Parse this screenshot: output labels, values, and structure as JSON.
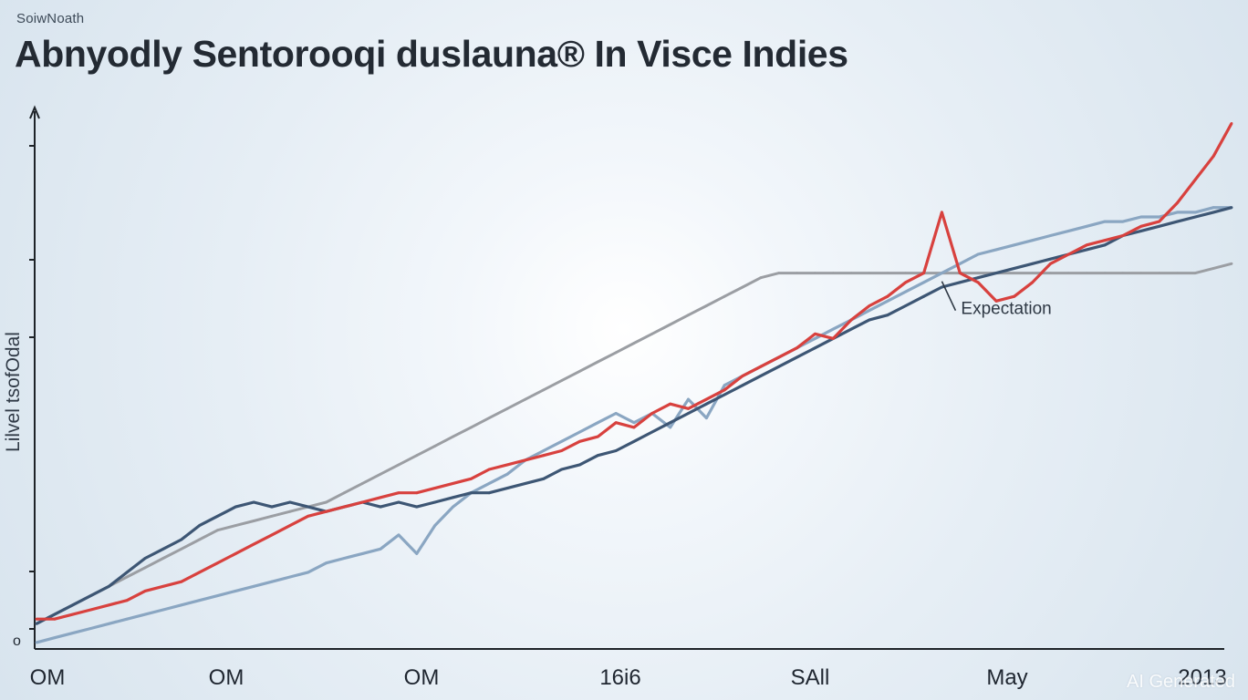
{
  "chart_data": {
    "type": "line",
    "supertitle": "SoiwNoath",
    "title": "Abnyodly Sentorooqi duslauna® In Visce Indies",
    "ylabel": "Lilvel tsofOdal",
    "y_tick_label": "o",
    "xticks": [
      "OM",
      "OM",
      "OM",
      "16i6",
      "SAll",
      "May",
      "2013"
    ],
    "x": [
      0,
      1,
      2,
      3,
      4,
      5,
      6,
      7,
      8,
      9,
      10,
      11,
      12,
      13,
      14,
      15,
      16,
      17,
      18,
      19,
      20,
      21,
      22,
      23,
      24,
      25,
      26,
      27,
      28,
      29,
      30,
      31,
      32,
      33,
      34,
      35,
      36,
      37,
      38,
      39,
      40,
      41,
      42,
      43,
      44,
      45,
      46,
      47,
      48,
      49,
      50,
      51,
      52,
      53,
      54,
      55,
      56,
      57,
      58,
      59,
      60,
      61,
      62,
      63,
      64,
      65,
      66
    ],
    "xlim": [
      0,
      66
    ],
    "ylim": [
      0,
      115
    ],
    "grid": false,
    "series": [
      {
        "color": "#d8413e",
        "values": [
          6,
          6,
          7,
          8,
          9,
          10,
          12,
          13,
          14,
          16,
          18,
          20,
          22,
          24,
          26,
          28,
          29,
          30,
          31,
          32,
          33,
          33,
          34,
          35,
          36,
          38,
          39,
          40,
          41,
          42,
          44,
          45,
          48,
          47,
          50,
          52,
          51,
          53,
          55,
          58,
          60,
          62,
          64,
          67,
          66,
          70,
          73,
          75,
          78,
          80,
          93,
          80,
          78,
          74,
          75,
          78,
          82,
          84,
          86,
          87,
          88,
          90,
          91,
          95,
          100,
          105,
          112
        ]
      },
      {
        "color": "#3d5674",
        "values": [
          5,
          7,
          9,
          11,
          13,
          16,
          19,
          21,
          23,
          26,
          28,
          30,
          31,
          30,
          31,
          30,
          29,
          30,
          31,
          30,
          31,
          30,
          31,
          32,
          33,
          33,
          34,
          35,
          36,
          38,
          39,
          41,
          42,
          44,
          46,
          48,
          50,
          52,
          54,
          56,
          58,
          60,
          62,
          64,
          66,
          68,
          70,
          71,
          73,
          75,
          77,
          78,
          79,
          80,
          81,
          82,
          83,
          84,
          85,
          86,
          88,
          89,
          90,
          91,
          92,
          93,
          94
        ]
      },
      {
        "color": "#8aa6c2",
        "values": [
          1,
          2,
          3,
          4,
          5,
          6,
          7,
          8,
          9,
          10,
          11,
          12,
          13,
          14,
          15,
          16,
          18,
          19,
          20,
          21,
          24,
          20,
          26,
          30,
          33,
          35,
          37,
          40,
          42,
          44,
          46,
          48,
          50,
          48,
          50,
          47,
          53,
          49,
          56,
          58,
          60,
          62,
          64,
          66,
          68,
          70,
          72,
          74,
          76,
          78,
          80,
          82,
          84,
          85,
          86,
          87,
          88,
          89,
          90,
          91,
          91,
          92,
          92,
          93,
          93,
          94,
          94
        ]
      },
      {
        "color": "#9b9ea3",
        "values": [
          5,
          7,
          9,
          11,
          13,
          15,
          17,
          19,
          21,
          23,
          25,
          26,
          27,
          28,
          29,
          30,
          31,
          33,
          35,
          37,
          39,
          41,
          43,
          45,
          47,
          49,
          51,
          53,
          55,
          57,
          59,
          61,
          63,
          65,
          67,
          69,
          71,
          73,
          75,
          77,
          79,
          80,
          80,
          80,
          80,
          80,
          80,
          80,
          80,
          80,
          80,
          80,
          80,
          80,
          80,
          80,
          80,
          80,
          80,
          80,
          80,
          80,
          80,
          80,
          80,
          81,
          82
        ]
      }
    ],
    "annotation": {
      "text": "Expectation",
      "x": 50,
      "y": 79
    }
  }
}
